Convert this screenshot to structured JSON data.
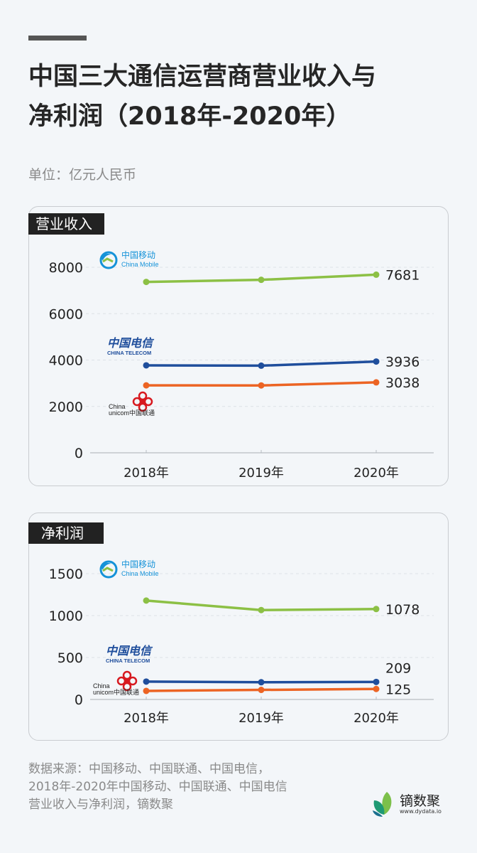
{
  "header": {
    "title_line1": "中国三大通信运营商营业收入与",
    "title_line2": "净利润（2018年-2020年）",
    "unit": "单位：亿元人民币"
  },
  "colors": {
    "china_mobile": "#8cc045",
    "china_telecom": "#1f4e9c",
    "china_unicom": "#ec6424",
    "tag_bg": "#222222",
    "background": "#f3f6f9"
  },
  "logos": {
    "china_mobile": {
      "cn": "中国移动",
      "en": "China Mobile"
    },
    "china_telecom": {
      "cn": "中国电信",
      "en": "CHINA TELECOM"
    },
    "china_unicom": {
      "en1": "China",
      "en2": "unicom",
      "cn": "中国联通"
    }
  },
  "panels": {
    "revenue": {
      "tag": "营业收入"
    },
    "profit": {
      "tag": "净利润"
    }
  },
  "footer": {
    "source_line1": "数据来源：中国移动、中国联通、中国电信，",
    "source_line2": "2018年-2020年中国移动、中国联通、中国电信",
    "source_line3": "营业收入与净利润，镝数聚",
    "brand_name": "镝数聚",
    "brand_url": "www.dydata.io"
  },
  "chart_data": [
    {
      "type": "line",
      "title": "营业收入",
      "categories": [
        "2018年",
        "2019年",
        "2020年"
      ],
      "yticks": [
        0,
        2000,
        4000,
        6000,
        8000
      ],
      "ylim": [
        0,
        8000
      ],
      "grid": true,
      "series": [
        {
          "name": "中国移动",
          "color": "#8cc045",
          "values": [
            7368,
            7459,
            7681
          ],
          "end_label": "7681"
        },
        {
          "name": "中国电信",
          "color": "#1f4e9c",
          "values": [
            3771,
            3757,
            3936
          ],
          "end_label": "3936"
        },
        {
          "name": "中国联通",
          "color": "#ec6424",
          "values": [
            2908,
            2905,
            3038
          ],
          "end_label": "3038"
        }
      ]
    },
    {
      "type": "line",
      "title": "净利润",
      "categories": [
        "2018年",
        "2019年",
        "2020年"
      ],
      "yticks": [
        0,
        500,
        1000,
        1500
      ],
      "ylim": [
        0,
        1500
      ],
      "grid": true,
      "series": [
        {
          "name": "中国移动",
          "color": "#8cc045",
          "values": [
            1179,
            1066,
            1078
          ],
          "end_label": "1078"
        },
        {
          "name": "中国电信",
          "color": "#1f4e9c",
          "values": [
            213,
            205,
            209
          ],
          "end_label": "209"
        },
        {
          "name": "中国联通",
          "color": "#ec6424",
          "values": [
            102,
            114,
            125
          ],
          "end_label": "125"
        }
      ]
    }
  ]
}
